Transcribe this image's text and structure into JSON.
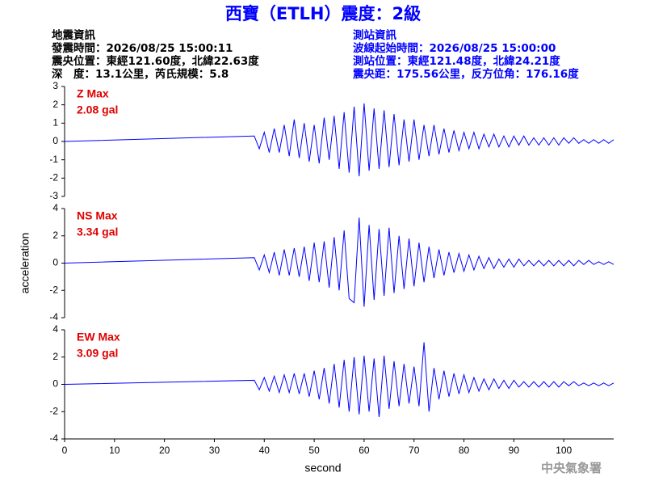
{
  "header": {
    "title": "西寶（ETLH）震度：2級",
    "left": [
      "地震資訊",
      "發震時間：2026/08/25 15:00:11",
      "震央位置：東經121.60度，北緯22.63度",
      "深　度：13.1公里，芮氏規模：5.8"
    ],
    "right": [
      "測站資訊",
      "波線起始時間：2026/08/25 15:00:00",
      "測站位置：東經121.48度，北緯24.21度",
      "震央距：175.56公里，反方位角：176.16度"
    ],
    "footer": "中央氣象署"
  },
  "chart_data": [
    {
      "type": "line",
      "annotations": [
        "Z Max",
        "2.08 gal"
      ],
      "xlim": [
        0,
        110
      ],
      "ylim": [
        -3,
        3
      ],
      "yticks": [
        -3,
        -2,
        -1,
        0,
        1,
        2,
        3
      ],
      "x": [
        0,
        38,
        39,
        40,
        41,
        42,
        43,
        44,
        45,
        46,
        47,
        48,
        49,
        50,
        51,
        52,
        53,
        54,
        55,
        56,
        57,
        58,
        59,
        60,
        61,
        62,
        63,
        64,
        65,
        66,
        67,
        68,
        69,
        70,
        71,
        72,
        73,
        74,
        75,
        76,
        77,
        78,
        79,
        80,
        81,
        82,
        83,
        84,
        85,
        86,
        87,
        88,
        89,
        90,
        91,
        92,
        93,
        94,
        95,
        96,
        97,
        98,
        99,
        100,
        101,
        102,
        103,
        104,
        105,
        106,
        107,
        108,
        109,
        110
      ],
      "series": [
        {
          "color": "#0000ff",
          "values": [
            0,
            0.3,
            -0.4,
            0.5,
            -0.6,
            0.7,
            -0.6,
            0.9,
            -0.8,
            1.2,
            -0.9,
            1.0,
            -1.1,
            0.9,
            -1.2,
            1.3,
            -1.0,
            1.4,
            -1.5,
            1.6,
            -1.7,
            1.9,
            -1.9,
            2.08,
            -1.6,
            1.8,
            -1.5,
            1.7,
            -1.4,
            1.5,
            -1.3,
            1.2,
            -1.1,
            1.2,
            -1.0,
            0.9,
            -0.8,
            0.9,
            -0.7,
            0.7,
            -0.6,
            0.6,
            -0.5,
            0.5,
            -0.4,
            0.5,
            -0.4,
            0.4,
            -0.3,
            0.4,
            -0.3,
            0.3,
            -0.3,
            0.3,
            -0.2,
            0.3,
            -0.2,
            0.2,
            -0.2,
            0.2,
            -0.2,
            0.2,
            -0.2,
            0.2,
            -0.1,
            0.2,
            -0.1,
            0.1,
            -0.1,
            0.1,
            -0.1,
            0.1,
            -0.1,
            0.1
          ]
        }
      ]
    },
    {
      "type": "line",
      "ylabel": "acceleration",
      "annotations": [
        "NS Max",
        "3.34 gal"
      ],
      "xlim": [
        0,
        110
      ],
      "ylim": [
        -4,
        4
      ],
      "yticks": [
        -4,
        -2,
        0,
        2,
        4
      ],
      "x": [
        0,
        38,
        39,
        40,
        41,
        42,
        43,
        44,
        45,
        46,
        47,
        48,
        49,
        50,
        51,
        52,
        53,
        54,
        55,
        56,
        57,
        58,
        59,
        60,
        61,
        62,
        63,
        64,
        65,
        66,
        67,
        68,
        69,
        70,
        71,
        72,
        73,
        74,
        75,
        76,
        77,
        78,
        79,
        80,
        81,
        82,
        83,
        84,
        85,
        86,
        87,
        88,
        89,
        90,
        91,
        92,
        93,
        94,
        95,
        96,
        97,
        98,
        99,
        100,
        101,
        102,
        103,
        104,
        105,
        106,
        107,
        108,
        109,
        110
      ],
      "series": [
        {
          "color": "#0000ff",
          "values": [
            0,
            0.4,
            -0.5,
            0.6,
            -0.7,
            0.8,
            -0.9,
            1.0,
            -0.9,
            1.1,
            -1.0,
            1.2,
            -1.3,
            1.5,
            -1.4,
            1.6,
            -1.8,
            1.9,
            -2.0,
            2.4,
            -2.6,
            -2.9,
            3.34,
            -3.2,
            2.8,
            -2.7,
            2.5,
            -2.4,
            2.6,
            -2.2,
            2.0,
            -1.9,
            1.8,
            -1.7,
            1.5,
            -1.4,
            1.2,
            -1.1,
            1.0,
            -0.9,
            0.8,
            -0.7,
            0.7,
            -0.6,
            0.6,
            -0.5,
            0.5,
            -0.4,
            0.4,
            -0.4,
            0.3,
            -0.3,
            0.3,
            -0.3,
            0.3,
            -0.2,
            0.2,
            -0.2,
            0.2,
            -0.2,
            0.2,
            -0.2,
            0.2,
            -0.2,
            0.2,
            -0.2,
            0.2,
            -0.1,
            0.2,
            -0.1,
            0.1,
            -0.1,
            0.1,
            -0.1
          ]
        }
      ]
    },
    {
      "type": "line",
      "xlabel": "second",
      "annotations": [
        "EW Max",
        "3.09 gal"
      ],
      "xlim": [
        0,
        110
      ],
      "ylim": [
        -4,
        4
      ],
      "yticks": [
        -4,
        -2,
        0,
        2,
        4
      ],
      "xticks": [
        0,
        10,
        20,
        30,
        40,
        50,
        60,
        70,
        80,
        90,
        100
      ],
      "x": [
        0,
        38,
        39,
        40,
        41,
        42,
        43,
        44,
        45,
        46,
        47,
        48,
        49,
        50,
        51,
        52,
        53,
        54,
        55,
        56,
        57,
        58,
        59,
        60,
        61,
        62,
        63,
        64,
        65,
        66,
        67,
        68,
        69,
        70,
        71,
        72,
        73,
        74,
        75,
        76,
        77,
        78,
        79,
        80,
        81,
        82,
        83,
        84,
        85,
        86,
        87,
        88,
        89,
        90,
        91,
        92,
        93,
        94,
        95,
        96,
        97,
        98,
        99,
        100,
        101,
        102,
        103,
        104,
        105,
        106,
        107,
        108,
        109,
        110
      ],
      "series": [
        {
          "color": "#0000ff",
          "values": [
            0,
            0.3,
            -0.4,
            0.5,
            -0.5,
            0.6,
            -0.6,
            0.7,
            -0.6,
            0.8,
            -0.7,
            0.8,
            -0.9,
            1.0,
            -1.1,
            1.2,
            -1.4,
            1.5,
            -1.7,
            1.8,
            -2.0,
            2.0,
            -2.2,
            2.1,
            -2.0,
            1.9,
            -2.4,
            2.1,
            -1.8,
            1.7,
            -1.6,
            1.5,
            -1.4,
            1.3,
            -1.6,
            3.09,
            -2.0,
            1.2,
            -1.1,
            1.0,
            -0.9,
            0.8,
            -0.7,
            0.7,
            -0.6,
            0.5,
            -0.5,
            0.4,
            -0.4,
            0.4,
            -0.3,
            0.3,
            -0.3,
            0.3,
            -0.2,
            0.2,
            -0.2,
            0.2,
            -0.2,
            0.2,
            -0.2,
            0.2,
            -0.2,
            0.2,
            -0.1,
            0.2,
            -0.1,
            0.1,
            -0.1,
            0.1,
            -0.1,
            0.1,
            -0.1,
            0.1
          ]
        }
      ]
    }
  ]
}
